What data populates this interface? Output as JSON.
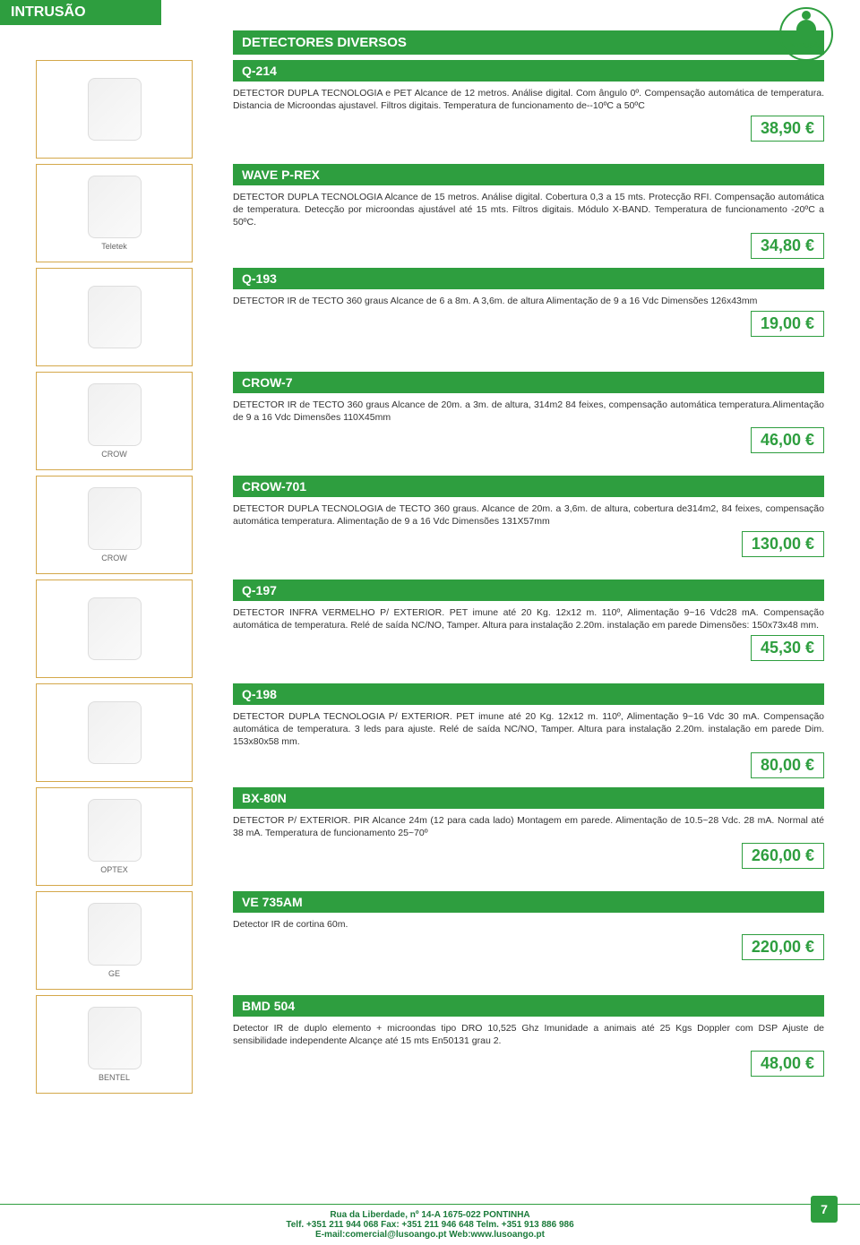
{
  "page": {
    "header_category": "INTRUSÃO",
    "section_title": "DETECTORES DIVERSOS",
    "badge_label": "INTRUSÃO",
    "page_number": "7",
    "colors": {
      "primary": "#2e9e3f",
      "border": "#d4a84a",
      "footer_text": "#1a7a3a"
    }
  },
  "products": [
    {
      "code": "Q-214",
      "brand": "",
      "desc": "DETECTOR DUPLA TECNOLOGIA e PET Alcance de 12 metros. Análise digital. Com ângulo 0º. Compensação automática de temperatura. Distancia de Microondas ajustavel. Filtros digitais. Temperatura de funcionamento de--10ºC a 50ºC",
      "price": "38,90 €"
    },
    {
      "code": "WAVE P-REX",
      "brand": "Teletek",
      "desc": "DETECTOR DUPLA TECNOLOGIA Alcance de 15 metros. Análise digital. Cobertura 0,3 a 15 mts. Protecção RFI. Compensação automática de temperatura. Detecção por microondas ajustável até 15 mts. Filtros digitais. Módulo X-BAND. Temperatura de funcionamento -20ºC a 50ºC.",
      "price": "34,80 €"
    },
    {
      "code": "Q-193",
      "brand": "",
      "desc": "DETECTOR IR de TECTO 360 graus Alcance de 6 a 8m. A 3,6m. de altura Alimentação de 9 a 16 Vdc Dimensões 126x43mm",
      "price": "19,00 €"
    },
    {
      "code": "CROW-7",
      "brand": "CROW",
      "desc": "DETECTOR IR de TECTO 360 graus Alcance de 20m. a 3m. de altura, 314m2 84 feixes, compensação automática temperatura.Alimentação de 9 a 16 Vdc Dimensões 110X45mm",
      "price": "46,00 €"
    },
    {
      "code": "CROW-701",
      "brand": "CROW",
      "desc": "DETECTOR DUPLA TECNOLOGIA de TECTO 360 graus. Alcance de 20m. a 3,6m. de altura, cobertura de314m2, 84 feixes, compensação automática temperatura. Alimentação de 9 a 16 Vdc Dimensões 131X57mm",
      "price": "130,00 €"
    },
    {
      "code": "Q-197",
      "brand": "",
      "desc": "DETECTOR INFRA VERMELHO P/ EXTERIOR. PET imune até 20 Kg. 12x12 m. 110º, Alimentação 9~16 Vdc28 mA. Compensação automática de temperatura. Relé de saída NC/NO, Tamper. Altura para instalação 2.20m. instalação em parede Dimensões: 150x73x48 mm.",
      "price": "45,30 €"
    },
    {
      "code": "Q-198",
      "brand": "",
      "desc": "DETECTOR DUPLA TECNOLOGIA P/ EXTERIOR. PET imune até 20 Kg. 12x12 m. 110º, Alimentação 9~16 Vdc 30 mA. Compensação automática de temperatura. 3 leds para ajuste. Relé de saída NC/NO, Tamper. Altura para instalação 2.20m. instalação em parede Dim. 153x80x58 mm.",
      "price": "80,00 €"
    },
    {
      "code": "BX-80N",
      "brand": "OPTEX",
      "desc": "DETECTOR P/ EXTERIOR. PIR Alcance 24m (12 para cada lado) Montagem em parede. Alimentação de 10.5~28 Vdc. 28 mA. Normal até 38 mA. Temperatura de funcionamento 25~70º",
      "price": "260,00 €"
    },
    {
      "code": "VE 735AM",
      "brand": "GE",
      "desc": "Detector IR de cortina 60m.",
      "price": "220,00 €"
    },
    {
      "code": "BMD 504",
      "brand": "BENTEL",
      "desc": "Detector IR de duplo elemento + microondas tipo DRO 10,525 Ghz Imunidade a animais até 25 Kgs Doppler com DSP Ajuste de sensibilidade independente Alcançe até 15 mts En50131 grau 2.",
      "price": "48,00 €"
    }
  ],
  "footer": {
    "line1": "Rua da Liberdade, nº 14-A 1675-022 PONTINHA",
    "line2": "Telf. +351 211 944 068 Fax: +351 211 946 648 Telm. +351 913 886 986",
    "line3": "E-mail:comercial@lusoango.pt Web:www.lusoango.pt"
  }
}
